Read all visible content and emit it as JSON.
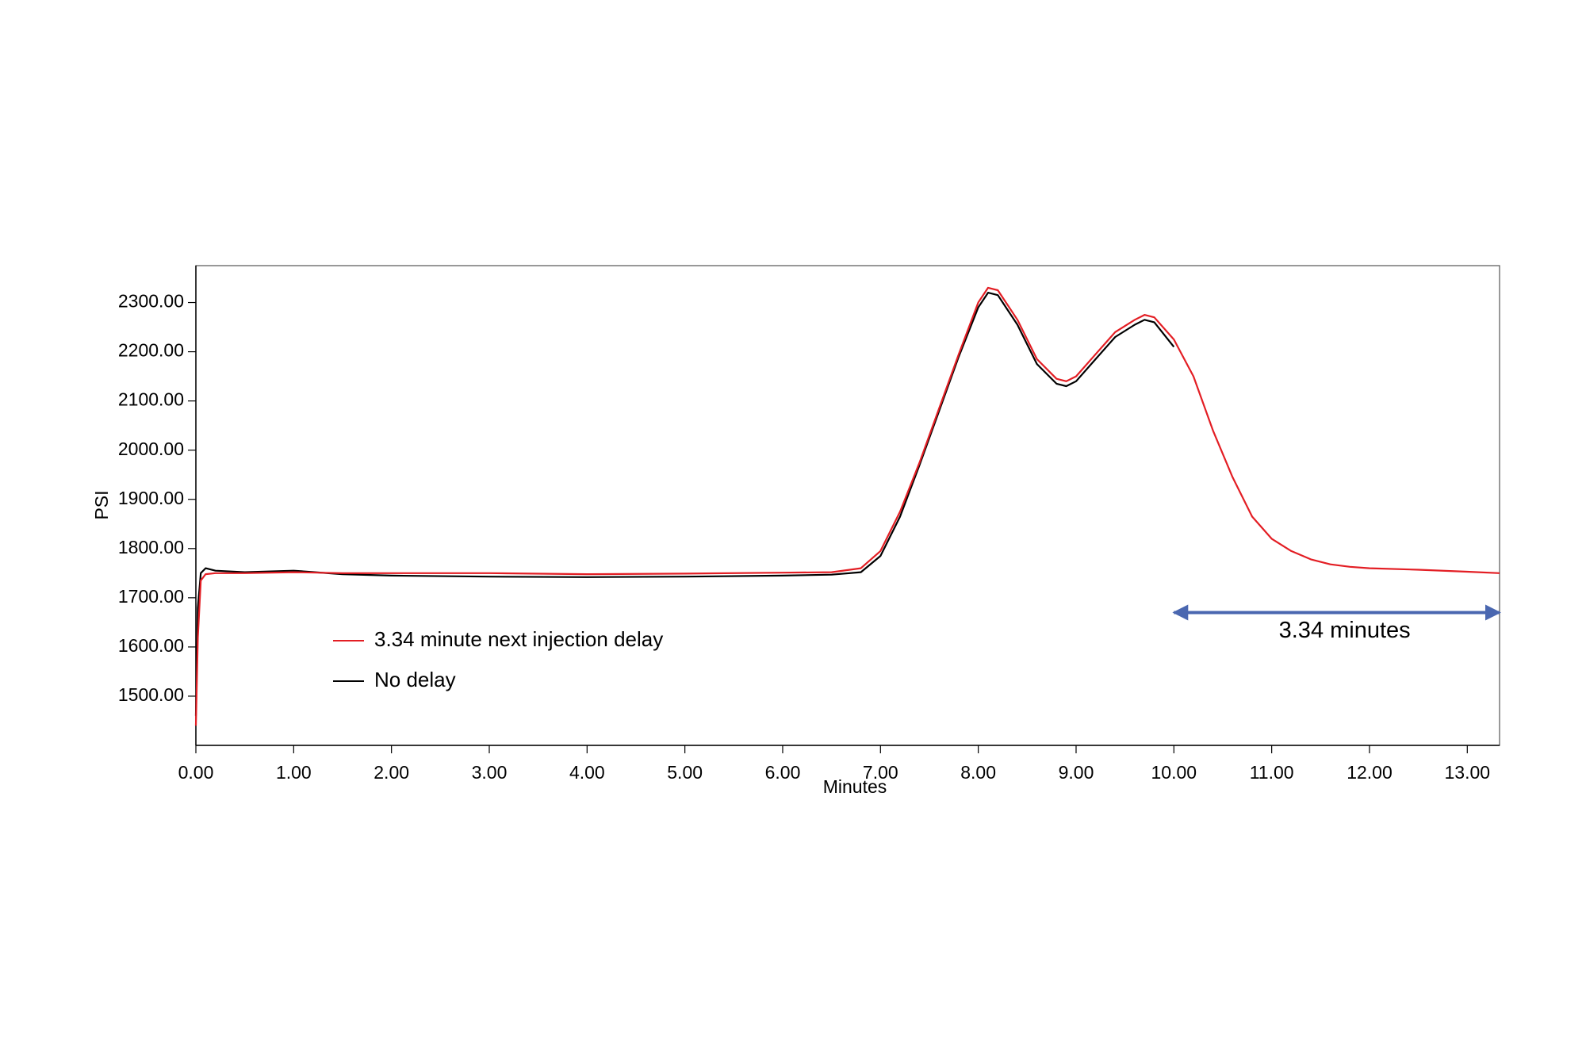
{
  "chart_data": {
    "type": "line",
    "x_label": "Minutes",
    "y_label": "PSI",
    "x": [
      0,
      0.02,
      0.05,
      0.1,
      0.2,
      0.5,
      1.0,
      1.5,
      2.0,
      3.0,
      4.0,
      5.0,
      6.0,
      6.5,
      6.8,
      7.0,
      7.2,
      7.4,
      7.6,
      7.8,
      8.0,
      8.1,
      8.2,
      8.4,
      8.6,
      8.8,
      8.9,
      9.0,
      9.2,
      9.4,
      9.6,
      9.7,
      9.8,
      10.0,
      10.2,
      10.4,
      10.6,
      10.8,
      11.0,
      11.2,
      11.4,
      11.6,
      11.8,
      12.0,
      12.5,
      13.0,
      13.33
    ],
    "series": [
      {
        "name": "3.34 minute next injection delay",
        "color": "#e31e24",
        "values": [
          1440,
          1620,
          1735,
          1748,
          1750,
          1750,
          1752,
          1750,
          1750,
          1750,
          1748,
          1749,
          1751,
          1752,
          1760,
          1795,
          1875,
          1975,
          2085,
          2195,
          2300,
          2330,
          2325,
          2265,
          2185,
          2145,
          2140,
          2150,
          2195,
          2240,
          2265,
          2275,
          2270,
          2225,
          2150,
          2040,
          1945,
          1865,
          1820,
          1795,
          1778,
          1768,
          1763,
          1760,
          1757,
          1753,
          1750
        ]
      },
      {
        "name": "No delay",
        "color": "#000000",
        "values": [
          1460,
          1680,
          1750,
          1760,
          1755,
          1752,
          1755,
          1748,
          1745,
          1743,
          1742,
          1743,
          1745,
          1747,
          1752,
          1785,
          1865,
          1970,
          2080,
          2190,
          2290,
          2320,
          2315,
          2255,
          2175,
          2135,
          2130,
          2140,
          2185,
          2230,
          2255,
          2265,
          2260,
          2210,
          null,
          null,
          null,
          null,
          null,
          null,
          null,
          null,
          null,
          null,
          null,
          null,
          null
        ]
      }
    ],
    "xlim": [
      0,
      13.33
    ],
    "ylim": [
      1400,
      2375
    ],
    "xticks": [
      {
        "value": 0,
        "label": "0.00"
      },
      {
        "value": 1,
        "label": "1.00"
      },
      {
        "value": 2,
        "label": "2.00"
      },
      {
        "value": 3,
        "label": "3.00"
      },
      {
        "value": 4,
        "label": "4.00"
      },
      {
        "value": 5,
        "label": "5.00"
      },
      {
        "value": 6,
        "label": "6.00"
      },
      {
        "value": 7,
        "label": "7.00"
      },
      {
        "value": 8,
        "label": "8.00"
      },
      {
        "value": 9,
        "label": "9.00"
      },
      {
        "value": 10,
        "label": "10.00"
      },
      {
        "value": 11,
        "label": "11.00"
      },
      {
        "value": 12,
        "label": "12.00"
      },
      {
        "value": 13,
        "label": "13.00"
      }
    ],
    "yticks": [
      {
        "value": 1500,
        "label": "1500.00"
      },
      {
        "value": 1600,
        "label": "1600.00"
      },
      {
        "value": 1700,
        "label": "1700.00"
      },
      {
        "value": 1800,
        "label": "1800.00"
      },
      {
        "value": 1900,
        "label": "1900.00"
      },
      {
        "value": 2000,
        "label": "2000.00"
      },
      {
        "value": 2100,
        "label": "2100.00"
      },
      {
        "value": 2200,
        "label": "2200.00"
      },
      {
        "value": 2300,
        "label": "2300.00"
      }
    ],
    "grid": false,
    "legend": "lower left",
    "annotation": {
      "text": "3.34 minutes",
      "color": "#4a67b0",
      "x_start": 10.0,
      "x_end": 13.33,
      "y": 1670
    }
  }
}
